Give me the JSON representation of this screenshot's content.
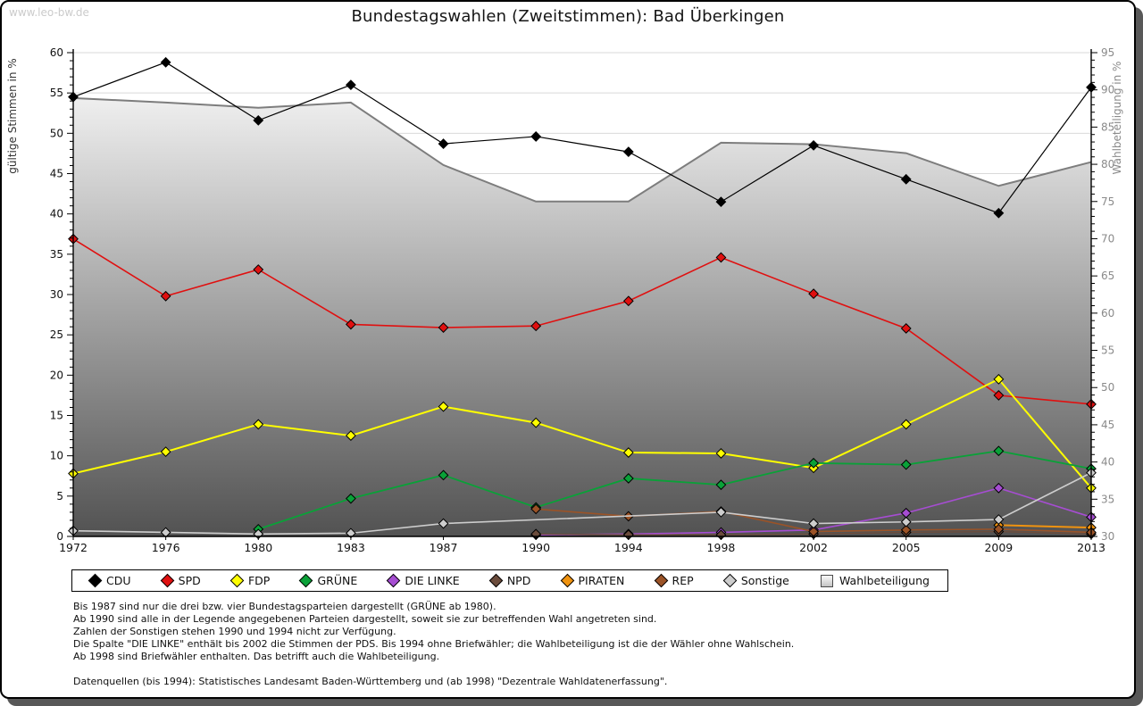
{
  "page": {
    "watermark": "www.leo-bw.de"
  },
  "chart_data": {
    "type": "line",
    "title": "Bundestagswahlen (Zweitstimmen): Bad Überkingen",
    "categories": [
      "1972",
      "1976",
      "1980",
      "1983",
      "1987",
      "1990",
      "1994",
      "1998",
      "2002",
      "2005",
      "2009",
      "2013"
    ],
    "axes": {
      "left": {
        "label": "gültige Stimmen in %",
        "min": 0,
        "max": 60,
        "major": 5,
        "minor": 1
      },
      "right": {
        "label": "Wahlbeteiligung in %",
        "min": 30,
        "max": 95,
        "major": 5,
        "minor": 1
      }
    },
    "grid": true,
    "legend_position": "bottom",
    "series": [
      {
        "name": "CDU",
        "color": "#000000",
        "axis": "left",
        "marker": "diamond",
        "line_width": 1.2,
        "values": [
          54.5,
          58.8,
          51.6,
          56.0,
          48.7,
          49.6,
          47.7,
          41.5,
          48.5,
          44.3,
          40.1,
          55.7
        ]
      },
      {
        "name": "SPD",
        "color": "#e01010",
        "axis": "left",
        "marker": "diamond",
        "line_width": 1.6,
        "values": [
          36.9,
          29.8,
          33.1,
          26.3,
          25.9,
          26.1,
          29.2,
          34.6,
          30.1,
          25.8,
          17.5,
          16.4
        ]
      },
      {
        "name": "FDP",
        "color": "#ffff00",
        "axis": "left",
        "marker": "diamond",
        "line_width": 2.0,
        "values": [
          7.8,
          10.5,
          13.9,
          12.5,
          16.1,
          14.1,
          10.4,
          10.3,
          8.5,
          13.9,
          19.5,
          6.0
        ]
      },
      {
        "name": "GRÜNE",
        "color": "#0aa138",
        "axis": "left",
        "marker": "diamond",
        "line_width": 1.8,
        "values": [
          null,
          null,
          0.9,
          4.7,
          7.6,
          3.6,
          7.2,
          6.4,
          9.1,
          8.9,
          10.6,
          8.4
        ]
      },
      {
        "name": "DIE LINKE",
        "color": "#a64dd2",
        "axis": "left",
        "marker": "diamond",
        "line_width": 1.6,
        "values": [
          null,
          null,
          null,
          null,
          null,
          0.2,
          0.3,
          0.5,
          0.8,
          2.9,
          6.0,
          2.4
        ]
      },
      {
        "name": "NPD",
        "color": "#6b4c3c",
        "axis": "left",
        "marker": "diamond",
        "line_width": 1.4,
        "values": [
          null,
          null,
          null,
          null,
          null,
          0.3,
          0.2,
          0.2,
          0.3,
          0.5,
          0.6,
          0.3
        ]
      },
      {
        "name": "PIRATEN",
        "color": "#f0930f",
        "axis": "left",
        "marker": "diamond",
        "line_width": 2.0,
        "values": [
          null,
          null,
          null,
          null,
          null,
          null,
          null,
          null,
          null,
          null,
          1.4,
          1.1
        ]
      },
      {
        "name": "REP",
        "color": "#9b5327",
        "axis": "left",
        "marker": "diamond",
        "line_width": 1.6,
        "values": [
          null,
          null,
          null,
          null,
          null,
          3.4,
          2.5,
          3.1,
          0.6,
          0.8,
          0.9,
          0.5
        ]
      },
      {
        "name": "Sonstige",
        "color": "#cdcdcd",
        "axis": "left",
        "marker": "diamond",
        "line_width": 1.6,
        "values": [
          0.7,
          0.5,
          0.3,
          0.4,
          1.6,
          null,
          null,
          3.0,
          1.6,
          1.8,
          2.1,
          7.9
        ]
      },
      {
        "name": "Wahlbeteiligung",
        "color": "#7d7d7d",
        "axis": "right",
        "marker": "square",
        "line_width": 2.0,
        "area": true,
        "show_markers": false,
        "values": [
          88.9,
          88.3,
          87.6,
          88.3,
          79.9,
          75.0,
          75.0,
          82.9,
          82.7,
          81.5,
          77.1,
          80.3
        ]
      }
    ]
  },
  "footnotes": {
    "notes": [
      "Bis 1987 sind nur die drei bzw. vier Bundestagsparteien dargestellt (GRÜNE ab 1980).",
      "Ab 1990 sind alle in der Legende angegebenen Parteien dargestellt, soweit sie zur betreffenden Wahl angetreten sind.",
      "Zahlen der Sonstigen stehen 1990 und 1994 nicht zur Verfügung.",
      "Die Spalte \"DIE LINKE\" enthält bis 2002 die Stimmen der PDS. Bis 1994 ohne Briefwähler; die Wahlbeteiligung ist die der Wähler ohne Wahlschein.",
      "Ab 1998 sind Briefwähler enthalten. Das betrifft auch die Wahlbeteiligung."
    ],
    "datasource": "Datenquellen (bis 1994): Statistisches Landesamt Baden-Württemberg und (ab 1998) \"Dezentrale Wahldatenerfassung\"."
  }
}
